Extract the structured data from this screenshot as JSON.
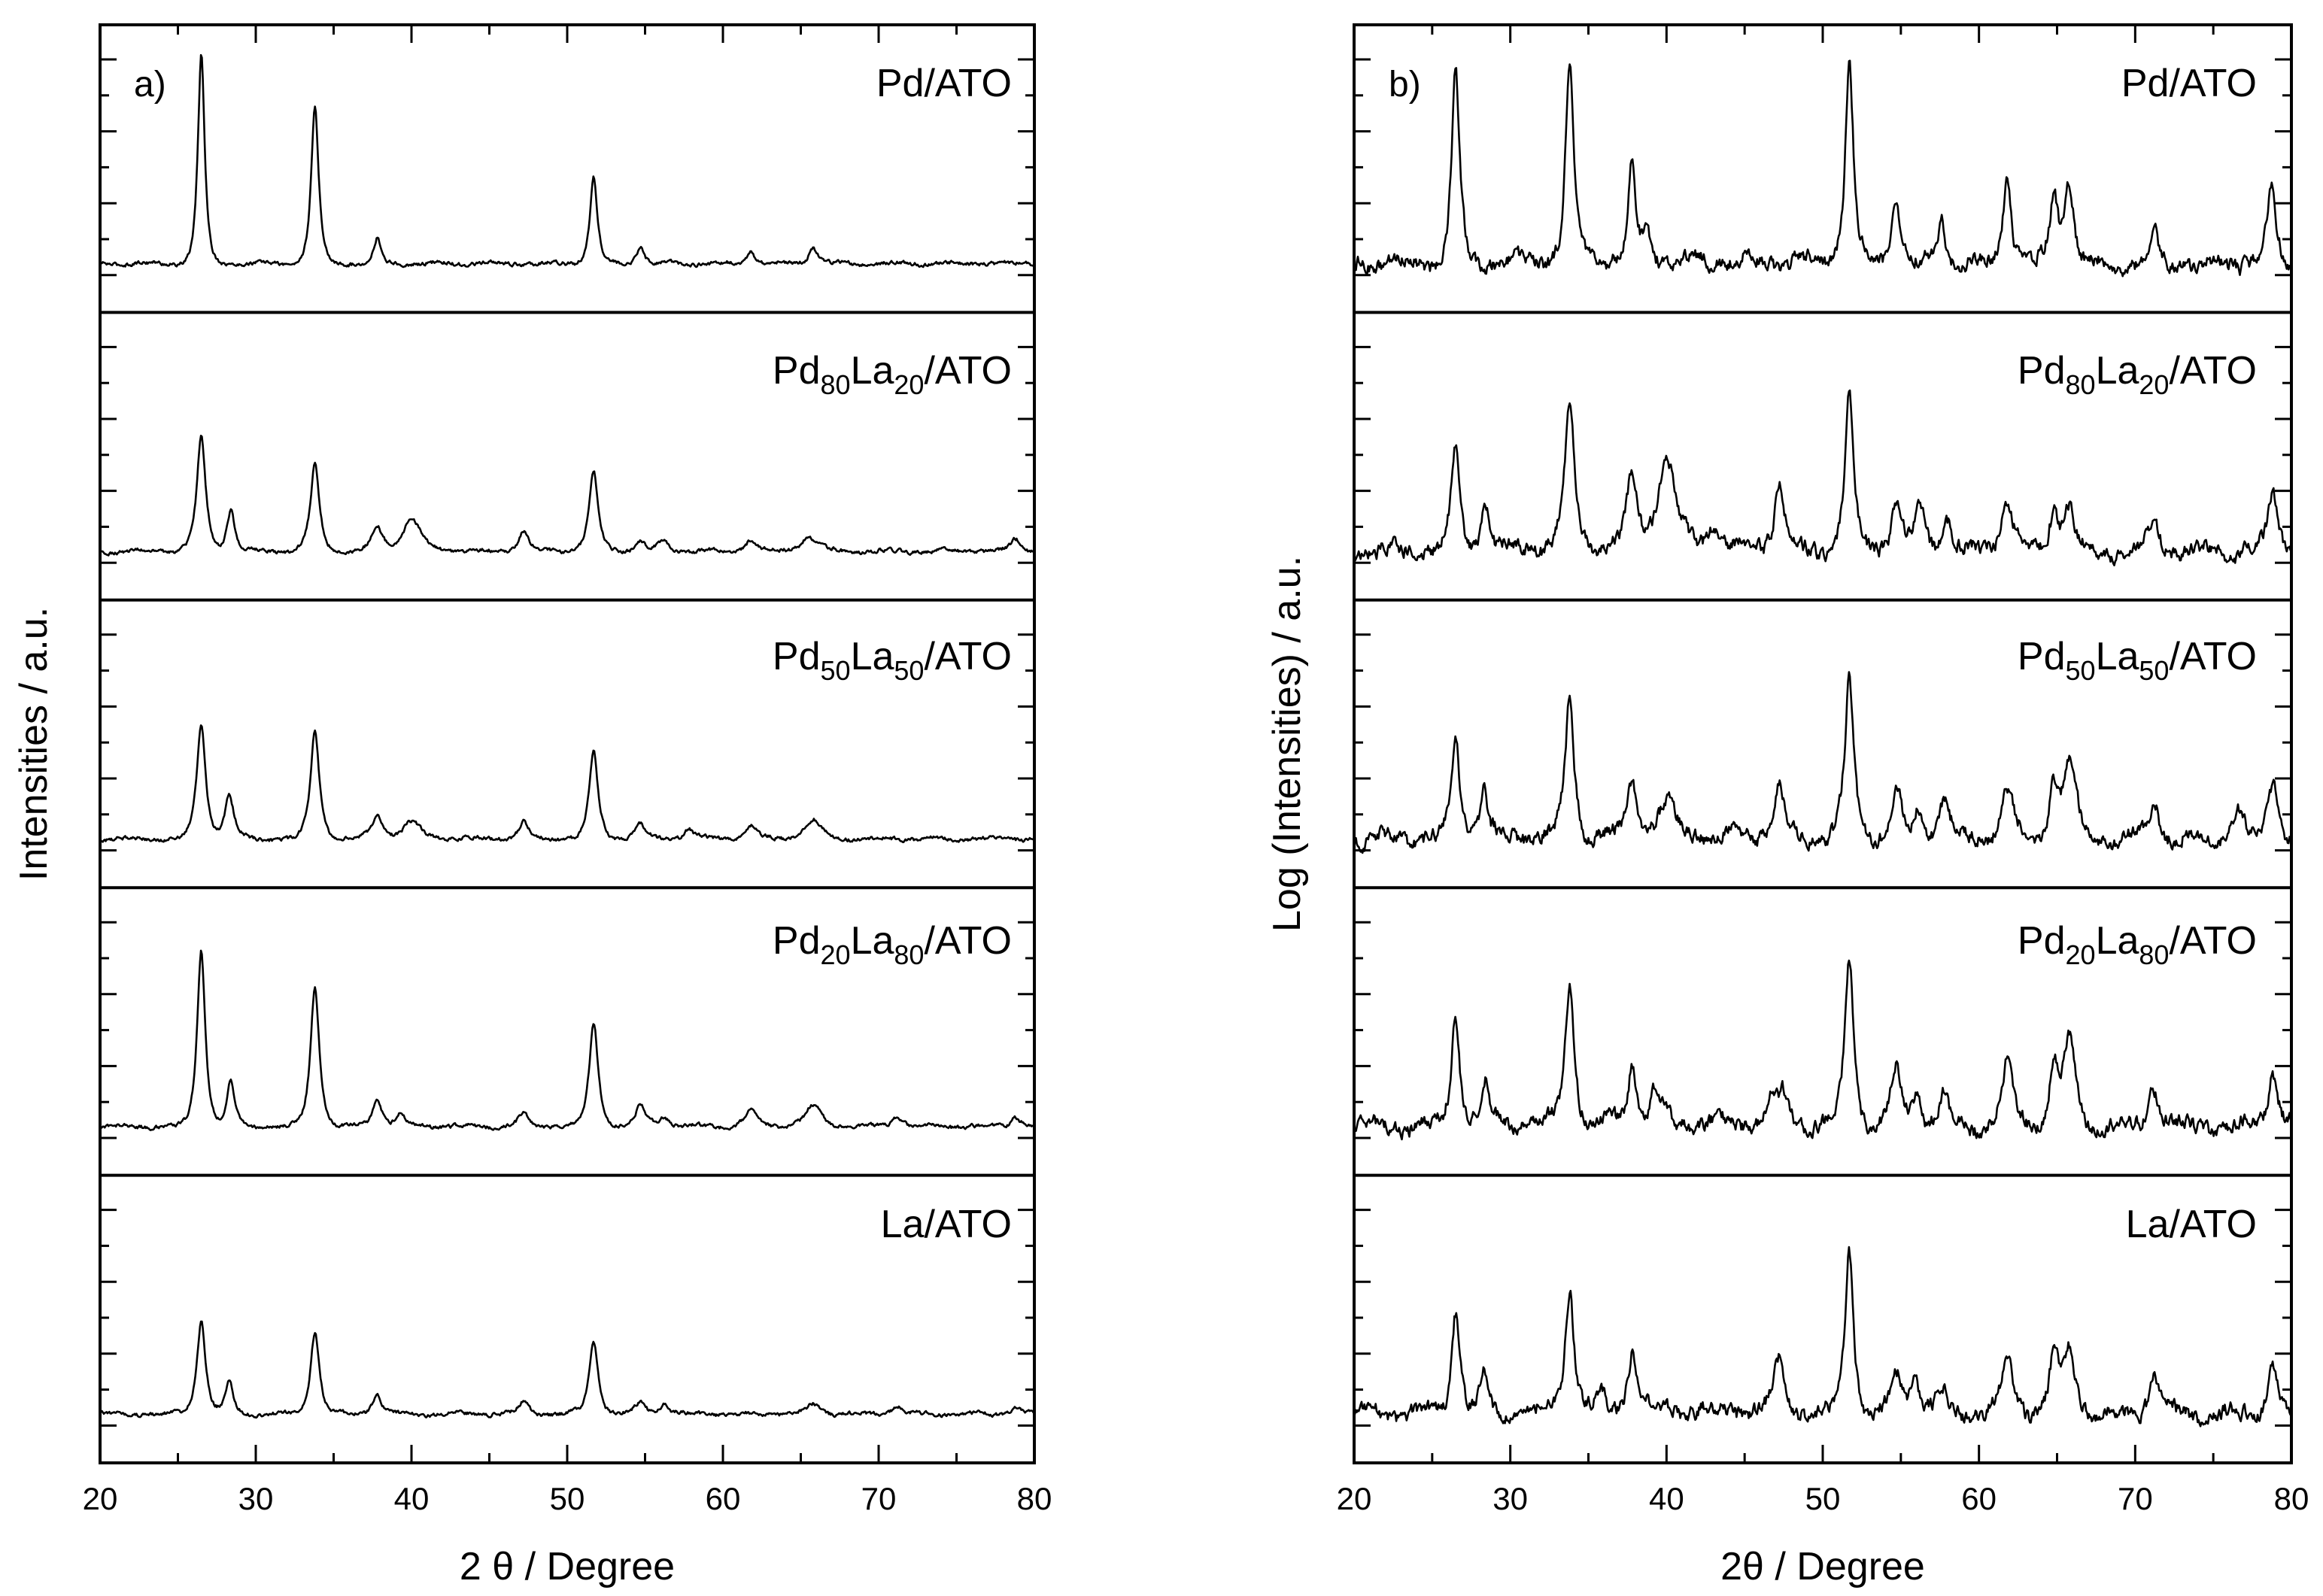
{
  "chart_data": [
    {
      "type": "line",
      "panel_label": "a)",
      "xlabel": "2 θ / Degree",
      "ylabel": "Intensities / a.u.",
      "xlim": [
        20,
        80
      ],
      "x_ticks": [
        "20",
        "30",
        "40",
        "50",
        "60",
        "70",
        "80"
      ],
      "scale": "linear",
      "series": [
        {
          "name": "Pd/ATO",
          "label": {
            "main": "Pd/ATO"
          },
          "peaks": [
            [
              26.5,
              1.0,
              0.35
            ],
            [
              33.8,
              0.75,
              0.38
            ],
            [
              37.8,
              0.12,
              0.35
            ],
            [
              51.7,
              0.42,
              0.38
            ],
            [
              54.7,
              0.08,
              0.4
            ],
            [
              61.8,
              0.06,
              0.4
            ],
            [
              65.8,
              0.08,
              0.45
            ]
          ]
        },
        {
          "name": "Pd80La20/ATO",
          "label": {
            "p1": "Pd",
            "s1": "80",
            "p2": "La",
            "s2": "20",
            "p3": "/ATO"
          },
          "peaks": [
            [
              26.5,
              0.55,
              0.45
            ],
            [
              28.4,
              0.2,
              0.4
            ],
            [
              33.8,
              0.42,
              0.45
            ],
            [
              37.8,
              0.12,
              0.5
            ],
            [
              40.0,
              0.16,
              0.9
            ],
            [
              47.2,
              0.1,
              0.5
            ],
            [
              51.7,
              0.38,
              0.45
            ],
            [
              54.7,
              0.05,
              0.5
            ],
            [
              56.2,
              0.05,
              0.5
            ],
            [
              61.8,
              0.06,
              0.6
            ],
            [
              65.5,
              0.07,
              0.8
            ],
            [
              78.8,
              0.06,
              0.5
            ]
          ]
        },
        {
          "name": "Pd50La50/ATO",
          "label": {
            "p1": "Pd",
            "s1": "50",
            "p2": "La",
            "s2": "50",
            "p3": "/ATO"
          },
          "peaks": [
            [
              26.5,
              0.55,
              0.45
            ],
            [
              28.3,
              0.22,
              0.45
            ],
            [
              33.8,
              0.52,
              0.45
            ],
            [
              37.8,
              0.12,
              0.5
            ],
            [
              40.0,
              0.08,
              0.9
            ],
            [
              47.2,
              0.08,
              0.5
            ],
            [
              51.7,
              0.42,
              0.45
            ],
            [
              54.7,
              0.07,
              0.5
            ],
            [
              57.8,
              0.05,
              0.5
            ],
            [
              61.8,
              0.06,
              0.6
            ],
            [
              65.8,
              0.09,
              0.8
            ]
          ]
        },
        {
          "name": "Pd20La80/ATO",
          "label": {
            "p1": "Pd",
            "s1": "20",
            "p2": "La",
            "s2": "80",
            "p3": "/ATO"
          },
          "peaks": [
            [
              26.5,
              0.85,
              0.42
            ],
            [
              28.4,
              0.22,
              0.4
            ],
            [
              33.8,
              0.68,
              0.45
            ],
            [
              37.8,
              0.14,
              0.45
            ],
            [
              39.3,
              0.06,
              0.5
            ],
            [
              47.2,
              0.06,
              0.5
            ],
            [
              51.7,
              0.5,
              0.45
            ],
            [
              54.7,
              0.1,
              0.5
            ],
            [
              56.2,
              0.05,
              0.5
            ],
            [
              61.8,
              0.08,
              0.6
            ],
            [
              65.8,
              0.1,
              0.8
            ],
            [
              71.2,
              0.05,
              0.5
            ],
            [
              78.8,
              0.05,
              0.5
            ]
          ]
        },
        {
          "name": "La/ATO",
          "label": {
            "main": "La/ATO"
          },
          "peaks": [
            [
              26.5,
              0.45,
              0.45
            ],
            [
              28.3,
              0.16,
              0.4
            ],
            [
              33.8,
              0.4,
              0.45
            ],
            [
              37.8,
              0.1,
              0.45
            ],
            [
              47.2,
              0.06,
              0.5
            ],
            [
              51.7,
              0.35,
              0.45
            ],
            [
              54.7,
              0.06,
              0.5
            ],
            [
              56.2,
              0.05,
              0.5
            ],
            [
              65.8,
              0.05,
              0.6
            ],
            [
              71.2,
              0.04,
              0.5
            ],
            [
              78.8,
              0.04,
              0.5
            ]
          ]
        }
      ]
    },
    {
      "type": "line",
      "panel_label": "b)",
      "xlabel": "2θ / Degree",
      "ylabel": "Log (Intensities) / a.u.",
      "xlim": [
        20,
        80
      ],
      "x_ticks": [
        "20",
        "30",
        "40",
        "50",
        "60",
        "70",
        "80"
      ],
      "scale": "log",
      "series": [
        {
          "name": "Pd/ATO",
          "label": {
            "main": "Pd/ATO"
          },
          "peaks": [
            [
              26.5,
              0.9,
              0.4
            ],
            [
              33.8,
              0.9,
              0.42
            ],
            [
              37.8,
              0.45,
              0.4
            ],
            [
              38.8,
              0.12,
              0.4
            ],
            [
              51.7,
              0.95,
              0.42
            ],
            [
              54.7,
              0.35,
              0.4
            ],
            [
              57.6,
              0.22,
              0.45
            ],
            [
              61.8,
              0.4,
              0.45
            ],
            [
              64.8,
              0.32,
              0.45
            ],
            [
              65.8,
              0.4,
              0.45
            ],
            [
              71.2,
              0.15,
              0.4
            ],
            [
              78.7,
              0.35,
              0.45
            ]
          ]
        },
        {
          "name": "Pd80La20/ATO",
          "label": {
            "p1": "Pd",
            "s1": "80",
            "p2": "La",
            "s2": "20",
            "p3": "/ATO"
          },
          "peaks": [
            [
              26.5,
              0.5,
              0.42
            ],
            [
              28.4,
              0.22,
              0.4
            ],
            [
              33.8,
              0.65,
              0.5
            ],
            [
              37.8,
              0.35,
              0.5
            ],
            [
              40.0,
              0.42,
              0.9
            ],
            [
              43.0,
              0.1,
              0.6
            ],
            [
              47.2,
              0.32,
              0.5
            ],
            [
              51.7,
              0.75,
              0.45
            ],
            [
              54.7,
              0.22,
              0.5
            ],
            [
              56.2,
              0.22,
              0.5
            ],
            [
              58.0,
              0.15,
              0.5
            ],
            [
              61.8,
              0.25,
              0.6
            ],
            [
              64.8,
              0.2,
              0.5
            ],
            [
              65.8,
              0.22,
              0.5
            ],
            [
              71.2,
              0.15,
              0.5
            ],
            [
              78.8,
              0.28,
              0.5
            ]
          ]
        },
        {
          "name": "Pd50La50/ATO",
          "label": {
            "p1": "Pd",
            "s1": "50",
            "p2": "La",
            "s2": "50",
            "p3": "/ATO"
          },
          "peaks": [
            [
              26.5,
              0.48,
              0.42
            ],
            [
              28.3,
              0.22,
              0.4
            ],
            [
              33.8,
              0.65,
              0.45
            ],
            [
              37.8,
              0.25,
              0.45
            ],
            [
              40.0,
              0.15,
              0.9
            ],
            [
              47.2,
              0.25,
              0.5
            ],
            [
              51.7,
              0.75,
              0.45
            ],
            [
              54.7,
              0.25,
              0.5
            ],
            [
              56.2,
              0.15,
              0.5
            ],
            [
              57.8,
              0.2,
              0.5
            ],
            [
              61.8,
              0.25,
              0.6
            ],
            [
              64.8,
              0.25,
              0.5
            ],
            [
              65.8,
              0.38,
              0.6
            ],
            [
              71.2,
              0.2,
              0.5
            ],
            [
              76.5,
              0.15,
              0.5
            ],
            [
              78.8,
              0.28,
              0.5
            ]
          ]
        },
        {
          "name": "Pd20La80/ATO",
          "label": {
            "p1": "Pd",
            "s1": "20",
            "p2": "La",
            "s2": "80",
            "p3": "/ATO"
          },
          "peaks": [
            [
              26.5,
              0.55,
              0.42
            ],
            [
              28.4,
              0.2,
              0.4
            ],
            [
              33.8,
              0.7,
              0.45
            ],
            [
              37.8,
              0.3,
              0.45
            ],
            [
              39.3,
              0.15,
              0.5
            ],
            [
              46.8,
              0.12,
              0.5
            ],
            [
              47.5,
              0.12,
              0.5
            ],
            [
              51.7,
              0.8,
              0.45
            ],
            [
              54.7,
              0.28,
              0.5
            ],
            [
              56.0,
              0.15,
              0.5
            ],
            [
              57.7,
              0.15,
              0.5
            ],
            [
              61.8,
              0.3,
              0.6
            ],
            [
              64.8,
              0.28,
              0.5
            ],
            [
              65.8,
              0.38,
              0.6
            ],
            [
              71.2,
              0.2,
              0.5
            ],
            [
              78.8,
              0.28,
              0.5
            ]
          ]
        },
        {
          "name": "La/ATO",
          "label": {
            "main": "La/ATO"
          },
          "peaks": [
            [
              26.5,
              0.5,
              0.42
            ],
            [
              28.3,
              0.2,
              0.4
            ],
            [
              33.8,
              0.6,
              0.45
            ],
            [
              35.8,
              0.1,
              0.4
            ],
            [
              37.8,
              0.3,
              0.45
            ],
            [
              47.2,
              0.25,
              0.5
            ],
            [
              51.7,
              0.8,
              0.42
            ],
            [
              54.7,
              0.2,
              0.5
            ],
            [
              55.9,
              0.18,
              0.5
            ],
            [
              57.6,
              0.12,
              0.5
            ],
            [
              61.8,
              0.25,
              0.6
            ],
            [
              64.8,
              0.25,
              0.5
            ],
            [
              65.8,
              0.3,
              0.6
            ],
            [
              71.2,
              0.18,
              0.5
            ],
            [
              78.8,
              0.25,
              0.5
            ]
          ]
        }
      ]
    }
  ]
}
